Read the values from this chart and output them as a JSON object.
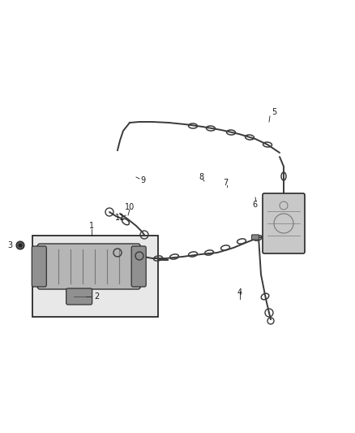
{
  "background_color": "#ffffff",
  "fig_width": 4.38,
  "fig_height": 5.33,
  "dpi": 100,
  "line_color": "#2a2a2a",
  "tube_color": "#3a3a3a",
  "tube_lw": 1.4,
  "label_fontsize": 7,
  "label_color": "#1a1a1a",
  "clip_color": "#3a3a3a",
  "component_fill": "#b0b0b0",
  "component_edge": "#2a2a2a",
  "box_fill": "#e8e8e8",
  "box_edge": "#2a2a2a",
  "canister_fill": "#c0c0c0",
  "canister_edge": "#2a2a2a"
}
